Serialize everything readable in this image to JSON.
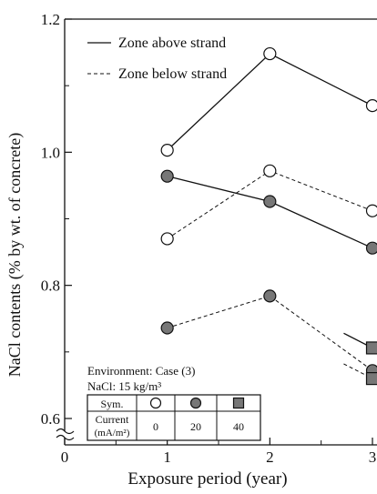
{
  "chart_data": {
    "type": "line",
    "xlabel": "Exposure period (year)",
    "ylabel": "NaCl contents (% by wt. of concrete)",
    "xlim": [
      0,
      3
    ],
    "ylim": [
      0.6,
      1.2
    ],
    "x_ticks": [
      0,
      1,
      2,
      3
    ],
    "y_ticks": [
      0.6,
      0.8,
      1.0,
      1.2
    ],
    "x_tick_labels": [
      "0",
      "1",
      "2",
      "3"
    ],
    "y_tick_labels": [
      "0.6",
      "0.8",
      "1.0",
      "1.2"
    ],
    "axis_break": true,
    "grid": false,
    "legend": [
      {
        "label": "Zone above strand",
        "line_style": "solid"
      },
      {
        "label": "Zone below strand",
        "line_style": "dashed"
      }
    ],
    "legend_position": "top-left",
    "series": [
      {
        "marker": "circle",
        "fill": "#ffffff",
        "line_style": "solid",
        "x": [
          1,
          2,
          3
        ],
        "y": [
          1.003,
          1.148,
          1.07
        ]
      },
      {
        "marker": "circle",
        "fill": "#ffffff",
        "line_style": "dashed",
        "x": [
          1,
          2,
          3
        ],
        "y": [
          0.87,
          0.972,
          0.912
        ]
      },
      {
        "marker": "circle",
        "fill": "#777777",
        "line_style": "solid",
        "x": [
          1,
          2,
          3
        ],
        "y": [
          0.964,
          0.926,
          0.856
        ]
      },
      {
        "marker": "circle",
        "fill": "#777777",
        "line_style": "dashed",
        "x": [
          1,
          2,
          3
        ],
        "y": [
          0.736,
          0.784,
          0.672
        ]
      },
      {
        "marker": "square",
        "fill": "#777777",
        "line_style": "solid",
        "x": [
          3
        ],
        "y": [
          0.706
        ],
        "partial_segment": true
      },
      {
        "marker": "square",
        "fill": "#777777",
        "line_style": "dashed",
        "x": [
          3
        ],
        "y": [
          0.66
        ],
        "partial_segment": true
      }
    ],
    "annotation": {
      "environment": "Environment: Case (3)",
      "nacl": "NaCl: 15 kg/m³",
      "table": {
        "row1_header": "Sym.",
        "row2_header_line1": "Current",
        "row2_header_line2": "(mA/m²)",
        "symbols": [
          {
            "marker": "circle",
            "fill": "#ffffff"
          },
          {
            "marker": "circle",
            "fill": "#777777"
          },
          {
            "marker": "square",
            "fill": "#777777"
          }
        ],
        "currents": [
          "0",
          "20",
          "40"
        ]
      }
    }
  }
}
